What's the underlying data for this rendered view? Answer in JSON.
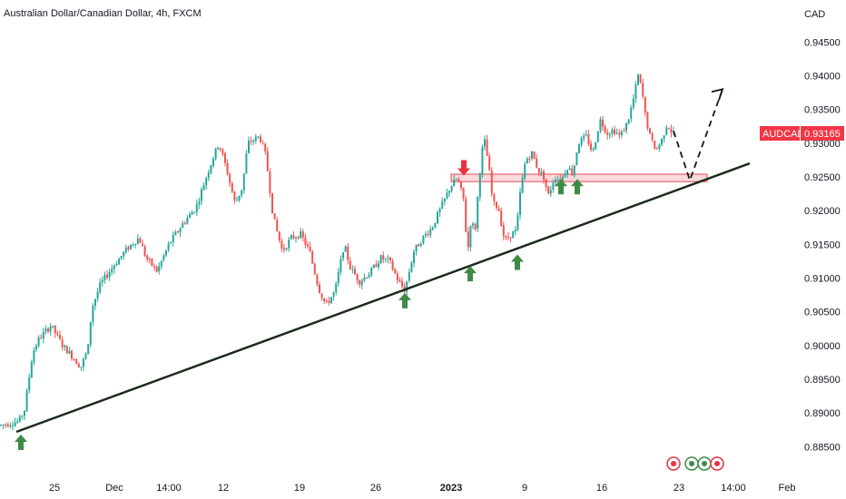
{
  "header": {
    "title": "Australian Dollar/Canadian Dollar, 4h, FXCM"
  },
  "chart_data": {
    "type": "candlestick",
    "symbol": "AUDCAD",
    "currency": "CAD",
    "last_price": "0.93165",
    "x_ticks": [
      "25",
      "Dec",
      "14:00",
      "12",
      "19",
      "26",
      "2023",
      "9",
      "16",
      "23",
      "14:00",
      "Feb"
    ],
    "y_ticks": [
      "0.94500",
      "0.94000",
      "0.93500",
      "0.93000",
      "0.92500",
      "0.92000",
      "0.91500",
      "0.91000",
      "0.90500",
      "0.90000",
      "0.89500",
      "0.89000",
      "0.88500"
    ],
    "ylim": [
      0.883,
      0.9475
    ],
    "price_path": [
      [
        0,
        0.8882
      ],
      [
        20,
        0.8888
      ],
      [
        26,
        0.8905
      ],
      [
        35,
        0.899
      ],
      [
        42,
        0.901
      ],
      [
        55,
        0.903
      ],
      [
        68,
        0.9
      ],
      [
        78,
        0.8985
      ],
      [
        88,
        0.8968
      ],
      [
        96,
        0.8995
      ],
      [
        100,
        0.9055
      ],
      [
        110,
        0.9092
      ],
      [
        125,
        0.912
      ],
      [
        140,
        0.9145
      ],
      [
        152,
        0.916
      ],
      [
        160,
        0.913
      ],
      [
        172,
        0.911
      ],
      [
        185,
        0.915
      ],
      [
        200,
        0.918
      ],
      [
        215,
        0.9205
      ],
      [
        230,
        0.9265
      ],
      [
        240,
        0.93
      ],
      [
        248,
        0.9265
      ],
      [
        258,
        0.921
      ],
      [
        266,
        0.9235
      ],
      [
        272,
        0.93
      ],
      [
        285,
        0.931
      ],
      [
        292,
        0.928
      ],
      [
        300,
        0.919
      ],
      [
        310,
        0.914
      ],
      [
        320,
        0.916
      ],
      [
        330,
        0.9165
      ],
      [
        340,
        0.914
      ],
      [
        350,
        0.9085
      ],
      [
        358,
        0.906
      ],
      [
        368,
        0.908
      ],
      [
        378,
        0.915
      ],
      [
        385,
        0.9115
      ],
      [
        395,
        0.9095
      ],
      [
        408,
        0.911
      ],
      [
        418,
        0.913
      ],
      [
        428,
        0.9125
      ],
      [
        438,
        0.9095
      ],
      [
        445,
        0.9082
      ],
      [
        455,
        0.914
      ],
      [
        465,
        0.916
      ],
      [
        475,
        0.9175
      ],
      [
        485,
        0.9205
      ],
      [
        495,
        0.9235
      ],
      [
        503,
        0.9248
      ],
      [
        510,
        0.9215
      ],
      [
        514,
        0.9135
      ],
      [
        518,
        0.919
      ],
      [
        522,
        0.9165
      ],
      [
        527,
        0.925
      ],
      [
        532,
        0.931
      ],
      [
        537,
        0.927
      ],
      [
        542,
        0.921
      ],
      [
        548,
        0.9205
      ],
      [
        555,
        0.9155
      ],
      [
        562,
        0.9165
      ],
      [
        568,
        0.917
      ],
      [
        572,
        0.9225
      ],
      [
        578,
        0.9275
      ],
      [
        585,
        0.9285
      ],
      [
        592,
        0.926
      ],
      [
        598,
        0.925
      ],
      [
        603,
        0.9222
      ],
      [
        610,
        0.925
      ],
      [
        617,
        0.9245
      ],
      [
        624,
        0.9265
      ],
      [
        630,
        0.9255
      ],
      [
        636,
        0.93
      ],
      [
        645,
        0.931
      ],
      [
        652,
        0.9285
      ],
      [
        660,
        0.9335
      ],
      [
        668,
        0.9315
      ],
      [
        675,
        0.932
      ],
      [
        682,
        0.931
      ],
      [
        690,
        0.933
      ],
      [
        696,
        0.936
      ],
      [
        702,
        0.94
      ],
      [
        706,
        0.938
      ],
      [
        710,
        0.934
      ],
      [
        716,
        0.9305
      ],
      [
        722,
        0.929
      ],
      [
        728,
        0.9305
      ],
      [
        734,
        0.933
      ],
      [
        738,
        0.9318
      ],
      [
        742,
        0.9315
      ]
    ],
    "trendline": [
      [
        18,
        0.8872
      ],
      [
        826,
        0.927
      ]
    ],
    "resistance_zone": [
      0.9243,
      0.9254
    ],
    "forecast_path": [
      [
        742,
        0.9318
      ],
      [
        760,
        0.9245
      ],
      [
        796,
        0.938
      ]
    ],
    "up_arrows": [
      [
        23,
        0.8868
      ],
      [
        446,
        0.9078
      ],
      [
        518,
        0.9118
      ],
      [
        570,
        0.9135
      ],
      [
        618,
        0.9247
      ],
      [
        636,
        0.9247
      ]
    ],
    "down_arrows": [
      [
        511,
        0.9252
      ]
    ]
  },
  "colors": {
    "bull": "#26a69a",
    "bear": "#ef5350",
    "trendline": "#1b2a1b",
    "zone_fill": "#f8c9cd",
    "zone_stroke": "#e34a55",
    "up_arrow": "#3f8a47",
    "down_arrow": "#e8323f",
    "badge": "#f23645"
  },
  "toolbar": {
    "icons": [
      "flash-icon",
      "economy-icon",
      "earnings-icon",
      "canada-flag-icon"
    ]
  }
}
